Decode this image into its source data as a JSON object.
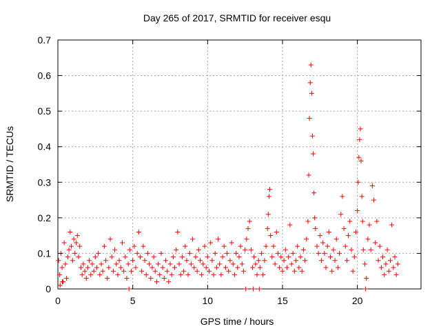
{
  "chart_data": {
    "type": "scatter",
    "title": "Day 265 of 2017, SRMTID for receiver esqu",
    "xlabel": "GPS time / hours",
    "ylabel": "SRMTID / TECUs",
    "xlim": [
      0,
      24.25
    ],
    "ylim": [
      0,
      0.7
    ],
    "xticks": [
      0,
      5,
      10,
      15,
      20
    ],
    "xtick_labels": [
      "0",
      "5",
      "10",
      "15",
      "20"
    ],
    "yticks": [
      0,
      0.1,
      0.2,
      0.3,
      0.4,
      0.5,
      0.6,
      0.7
    ],
    "ytick_labels": [
      "0",
      "0.1",
      "0.2",
      "0.3",
      "0.4",
      "0.5",
      "0.6",
      "0.7"
    ],
    "grid": true,
    "marker": "plus",
    "series": [
      {
        "name": "SRMTID",
        "color": "#ff0000",
        "points": [
          [
            0.05,
            0.08
          ],
          [
            0.12,
            0.04
          ],
          [
            0.2,
            0.1
          ],
          [
            0.28,
            0.06
          ],
          [
            0.35,
            0.02
          ],
          [
            0.42,
            0.13
          ],
          [
            0.5,
            0.07
          ],
          [
            0.58,
            0.03
          ],
          [
            0.66,
            0.09
          ],
          [
            0.74,
            0.11
          ],
          [
            0.82,
            0.16
          ],
          [
            0.9,
            0.12
          ],
          [
            0.98,
            0.08
          ],
          [
            1.06,
            0.14
          ],
          [
            1.14,
            0.1
          ],
          [
            1.22,
            0.13
          ],
          [
            1.3,
            0.15
          ],
          [
            1.38,
            0.09
          ],
          [
            1.46,
            0.12
          ],
          [
            1.54,
            0.06
          ],
          [
            1.62,
            0.04
          ],
          [
            1.7,
            0.07
          ],
          [
            1.8,
            0.05
          ],
          [
            1.9,
            0.03
          ],
          [
            2.0,
            0.06
          ],
          [
            2.1,
            0.08
          ],
          [
            2.2,
            0.04
          ],
          [
            2.3,
            0.07
          ],
          [
            2.4,
            0.05
          ],
          [
            2.5,
            0.09
          ],
          [
            2.6,
            0.06
          ],
          [
            2.7,
            0.1
          ],
          [
            2.8,
            0.04
          ],
          [
            2.9,
            0.07
          ],
          [
            3.0,
            0.05
          ],
          [
            3.1,
            0.12
          ],
          [
            3.2,
            0.08
          ],
          [
            3.3,
            0.03
          ],
          [
            3.4,
            0.06
          ],
          [
            3.5,
            0.14
          ],
          [
            3.6,
            0.09
          ],
          [
            3.7,
            0.05
          ],
          [
            3.8,
            0.11
          ],
          [
            3.9,
            0.07
          ],
          [
            4.0,
            0.04
          ],
          [
            4.1,
            0.08
          ],
          [
            4.2,
            0.06
          ],
          [
            4.3,
            0.13
          ],
          [
            4.4,
            0.05
          ],
          [
            4.5,
            0.09
          ],
          [
            4.6,
            0.03
          ],
          [
            4.7,
            0.07
          ],
          [
            4.8,
            0.11
          ],
          [
            4.9,
            0.05
          ],
          [
            5.0,
            0.08
          ],
          [
            5.1,
            0.12
          ],
          [
            5.2,
            0.06
          ],
          [
            5.3,
            0.1
          ],
          [
            5.4,
            0.16
          ],
          [
            5.5,
            0.09
          ],
          [
            5.6,
            0.05
          ],
          [
            5.7,
            0.12
          ],
          [
            5.8,
            0.08
          ],
          [
            5.9,
            0.04
          ],
          [
            6.0,
            0.1
          ],
          [
            6.1,
            0.07
          ],
          [
            6.2,
            0.03
          ],
          [
            6.3,
            0.06
          ],
          [
            6.4,
            0.09
          ],
          [
            6.5,
            0.05
          ],
          [
            6.6,
            0.02
          ],
          [
            6.7,
            0.07
          ],
          [
            6.8,
            0.04
          ],
          [
            6.9,
            0.1
          ],
          [
            7.0,
            0.06
          ],
          [
            7.1,
            0.03
          ],
          [
            7.2,
            0.08
          ],
          [
            7.3,
            0.05
          ],
          [
            7.4,
            0.02
          ],
          [
            7.5,
            0.07
          ],
          [
            7.6,
            0.04
          ],
          [
            7.7,
            0.09
          ],
          [
            7.8,
            0.06
          ],
          [
            7.9,
            0.11
          ],
          [
            8.0,
            0.16
          ],
          [
            8.1,
            0.07
          ],
          [
            8.2,
            0.04
          ],
          [
            8.3,
            0.09
          ],
          [
            8.4,
            0.05
          ],
          [
            8.5,
            0.12
          ],
          [
            8.6,
            0.08
          ],
          [
            8.7,
            0.04
          ],
          [
            8.8,
            0.1
          ],
          [
            8.9,
            0.07
          ],
          [
            9.0,
            0.14
          ],
          [
            9.1,
            0.06
          ],
          [
            9.2,
            0.09
          ],
          [
            9.3,
            0.05
          ],
          [
            9.4,
            0.11
          ],
          [
            9.5,
            0.08
          ],
          [
            9.6,
            0.04
          ],
          [
            9.7,
            0.07
          ],
          [
            9.8,
            0.12
          ],
          [
            9.9,
            0.06
          ],
          [
            10.0,
            0.09
          ],
          [
            10.1,
            0.05
          ],
          [
            10.2,
            0.13
          ],
          [
            10.3,
            0.08
          ],
          [
            10.4,
            0.04
          ],
          [
            10.5,
            0.1
          ],
          [
            10.6,
            0.06
          ],
          [
            10.7,
            0.14
          ],
          [
            10.8,
            0.07
          ],
          [
            10.9,
            0.04
          ],
          [
            11.0,
            0.09
          ],
          [
            11.1,
            0.12
          ],
          [
            11.2,
            0.06
          ],
          [
            11.3,
            0.1
          ],
          [
            11.4,
            0.05
          ],
          [
            11.5,
            0.08
          ],
          [
            11.6,
            0.13
          ],
          [
            11.7,
            0.07
          ],
          [
            11.8,
            0.04
          ],
          [
            11.9,
            0.1
          ],
          [
            12.0,
            0.06
          ],
          [
            12.1,
            0.09
          ],
          [
            12.2,
            0.12
          ],
          [
            12.3,
            0.07
          ],
          [
            12.4,
            0.05
          ],
          [
            12.5,
            0.11
          ],
          [
            12.6,
            0.14
          ],
          [
            12.7,
            0.17
          ],
          [
            12.8,
            0.19
          ],
          [
            12.9,
            0.11
          ],
          [
            13.0,
            0.06
          ],
          [
            13.1,
            0.09
          ],
          [
            13.2,
            0.07
          ],
          [
            13.3,
            0.04
          ],
          [
            13.4,
            0.08
          ],
          [
            13.5,
            0.06
          ],
          [
            13.6,
            0.1
          ],
          [
            13.7,
            0.04
          ],
          [
            13.8,
            0.08
          ],
          [
            13.9,
            0.12
          ],
          [
            14.0,
            0.17
          ],
          [
            14.05,
            0.21
          ],
          [
            14.1,
            0.26
          ],
          [
            14.15,
            0.28
          ],
          [
            14.2,
            0.15
          ],
          [
            14.3,
            0.09
          ],
          [
            14.4,
            0.12
          ],
          [
            14.5,
            0.07
          ],
          [
            14.6,
            0.16
          ],
          [
            14.7,
            0.1
          ],
          [
            14.8,
            0.06
          ],
          [
            14.9,
            0.09
          ],
          [
            15.0,
            0.05
          ],
          [
            15.1,
            0.08
          ],
          [
            15.2,
            0.11
          ],
          [
            15.3,
            0.06
          ],
          [
            15.4,
            0.09
          ],
          [
            15.5,
            0.18
          ],
          [
            15.6,
            0.07
          ],
          [
            15.7,
            0.1
          ],
          [
            15.8,
            0.05
          ],
          [
            15.9,
            0.08
          ],
          [
            16.0,
            0.12
          ],
          [
            16.1,
            0.06
          ],
          [
            16.2,
            0.09
          ],
          [
            16.3,
            0.05
          ],
          [
            16.4,
            0.11
          ],
          [
            16.5,
            0.08
          ],
          [
            16.6,
            0.14
          ],
          [
            16.7,
            0.19
          ],
          [
            16.75,
            0.32
          ],
          [
            16.8,
            0.48
          ],
          [
            16.85,
            0.58
          ],
          [
            16.9,
            0.63
          ],
          [
            16.95,
            0.55
          ],
          [
            17.0,
            0.43
          ],
          [
            17.05,
            0.38
          ],
          [
            17.1,
            0.27
          ],
          [
            17.15,
            0.2
          ],
          [
            17.2,
            0.17
          ],
          [
            17.3,
            0.12
          ],
          [
            17.4,
            0.1
          ],
          [
            17.5,
            0.15
          ],
          [
            17.6,
            0.08
          ],
          [
            17.7,
            0.13
          ],
          [
            17.8,
            0.1
          ],
          [
            17.9,
            0.06
          ],
          [
            18.0,
            0.12
          ],
          [
            18.1,
            0.16
          ],
          [
            18.2,
            0.09
          ],
          [
            18.3,
            0.05
          ],
          [
            18.4,
            0.11
          ],
          [
            18.5,
            0.08
          ],
          [
            18.6,
            0.14
          ],
          [
            18.7,
            0.06
          ],
          [
            18.8,
            0.1
          ],
          [
            18.9,
            0.21
          ],
          [
            19.0,
            0.26
          ],
          [
            19.1,
            0.17
          ],
          [
            19.2,
            0.12
          ],
          [
            19.3,
            0.08
          ],
          [
            19.4,
            0.15
          ],
          [
            19.5,
            0.19
          ],
          [
            19.6,
            0.11
          ],
          [
            19.7,
            0.05
          ],
          [
            19.8,
            0.09
          ],
          [
            19.9,
            0.16
          ],
          [
            20.0,
            0.22
          ],
          [
            20.05,
            0.3
          ],
          [
            20.1,
            0.37
          ],
          [
            20.15,
            0.42
          ],
          [
            20.2,
            0.45
          ],
          [
            20.25,
            0.36
          ],
          [
            20.3,
            0.26
          ],
          [
            20.35,
            0.19
          ],
          [
            20.4,
            0.11
          ],
          [
            20.5,
            0.07
          ],
          [
            20.6,
            0.03
          ],
          [
            20.7,
            0.14
          ],
          [
            20.8,
            0.18
          ],
          [
            20.9,
            0.11
          ],
          [
            21.0,
            0.29
          ],
          [
            21.1,
            0.25
          ],
          [
            21.2,
            0.13
          ],
          [
            21.3,
            0.19
          ],
          [
            21.4,
            0.08
          ],
          [
            21.5,
            0.12
          ],
          [
            21.6,
            0.06
          ],
          [
            21.7,
            0.09
          ],
          [
            21.8,
            0.04
          ],
          [
            21.9,
            0.07
          ],
          [
            22.0,
            0.11
          ],
          [
            22.1,
            0.05
          ],
          [
            22.2,
            0.08
          ],
          [
            22.3,
            0.18
          ],
          [
            22.4,
            0.06
          ],
          [
            22.5,
            0.09
          ],
          [
            22.6,
            0.04
          ],
          [
            22.7,
            0.07
          ],
          [
            0.15,
            0.01
          ],
          [
            4.75,
            0.0
          ],
          [
            12.55,
            0.0
          ],
          [
            13.05,
            0.0
          ],
          [
            13.45,
            0.0
          ],
          [
            20.55,
            0.0
          ],
          [
            0.3,
            0.02
          ]
        ]
      }
    ]
  }
}
